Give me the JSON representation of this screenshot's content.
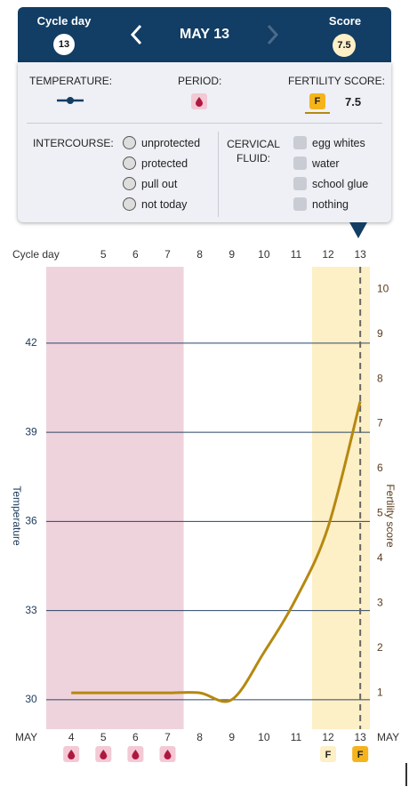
{
  "header": {
    "cycle_day_label": "Cycle day",
    "cycle_day": 13,
    "date": "MAY 13",
    "score_label": "Score",
    "score": 7.5
  },
  "summary": {
    "temperature": "TEMPERATURE:",
    "period": "PERIOD:",
    "fertility": "FERTILITY SCORE:",
    "fertility_badge": "F",
    "fertility_value": 7.5
  },
  "intercourse": {
    "label": "INTERCOURSE:",
    "options": [
      "unprotected",
      "protected",
      "pull out",
      "not today"
    ]
  },
  "cervical_fluid": {
    "label": "CERVICAL FLUID:",
    "options": [
      "egg whites",
      "water",
      "school glue",
      "nothing"
    ]
  },
  "chart_data": {
    "type": "line",
    "top_axis_label": "Cycle day",
    "x_axis_label": "MAY",
    "x": [
      4,
      5,
      6,
      7,
      8,
      9,
      10,
      11,
      12,
      13
    ],
    "cycle_days": [
      null,
      5,
      6,
      7,
      8,
      9,
      10,
      11,
      12,
      13
    ],
    "xlim": [
      3.22,
      13.3
    ],
    "ylabel": "Temperature",
    "ylim": [
      29.01,
      44.57
    ],
    "yticks": [
      30,
      33,
      36,
      39,
      42
    ],
    "y2label": "Fertility score",
    "y2lim": [
      0.19,
      10.5
    ],
    "y2ticks": [
      1,
      2,
      3,
      4,
      5,
      6,
      7,
      8,
      9,
      10
    ],
    "grid": true,
    "period_days": [
      4,
      5,
      6,
      7
    ],
    "period_color": "#efd3dc",
    "fertile_days": [
      12,
      13
    ],
    "fertile_color": "#fdefc6",
    "fertile_labels": [
      "F",
      "F"
    ],
    "series": [
      {
        "color": "#b5880f",
        "axis": "y2",
        "values": [
          1.0,
          1.0,
          1.0,
          1.0,
          1.0,
          0.85,
          1.9,
          3.1,
          4.7,
          7.5
        ]
      }
    ]
  }
}
